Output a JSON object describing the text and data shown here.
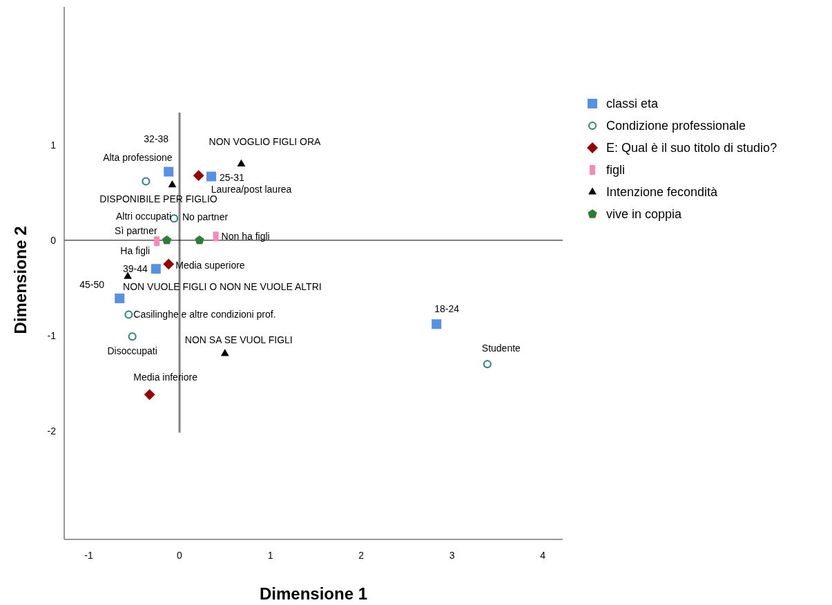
{
  "chart_data": {
    "type": "scatter",
    "xlabel": "Dimensione 1",
    "ylabel": "Dimensione 2",
    "xlim": [
      -1.27,
      4.22
    ],
    "ylim": [
      -3.14,
      2.45
    ],
    "xticks": [
      -1,
      0,
      1,
      2,
      3,
      4
    ],
    "yticks": [
      -2,
      -1,
      0,
      1
    ],
    "grid": false,
    "legend": "right",
    "ref_lines": [
      {
        "axis": "x",
        "value": 0,
        "color": "#808080"
      },
      {
        "axis": "y",
        "value": 0,
        "color": "#000000"
      }
    ],
    "series": [
      {
        "name": "classi eta",
        "color": "#5592e6",
        "marker": "square",
        "x": [
          -0.12,
          0.35,
          -0.26,
          -0.66,
          2.83
        ],
        "values": [
          0.72,
          0.67,
          -0.3,
          -0.61,
          -0.88
        ],
        "value_labels": [
          "32-38",
          "25-31",
          "39-44",
          "45-50",
          "18-24"
        ]
      },
      {
        "name": "Condizione professionale",
        "color": "#2a7f7f",
        "marker": "circle",
        "x": [
          -0.37,
          -0.06,
          -0.56,
          -0.52,
          3.39
        ],
        "values": [
          0.62,
          0.23,
          -0.78,
          -1.01,
          -1.3
        ],
        "value_labels": [
          "Alta professione",
          "Altri occupati",
          "Casilinghe e altre condizioni prof.",
          "Disoccupati",
          "Studente"
        ]
      },
      {
        "name": "E: Qual è il suo titolo di studio?",
        "color": "#990000",
        "marker": "diamond",
        "x": [
          0.21,
          -0.12,
          -0.33
        ],
        "values": [
          0.68,
          -0.25,
          -1.62
        ],
        "value_labels": [
          "Laurea/post laurea",
          "Media superiore",
          "Media inferiore"
        ]
      },
      {
        "name": "figli",
        "color": "#f788b8",
        "marker": "square",
        "x": [
          -0.25,
          0.4
        ],
        "values": [
          -0.01,
          0.04
        ],
        "value_labels": [
          "Ha figli",
          "Non ha figli"
        ]
      },
      {
        "name": "Intenzione fecondità",
        "color": "#000000",
        "marker": "triangle",
        "x": [
          0.68,
          -0.08,
          -0.57,
          0.5
        ],
        "values": [
          0.8,
          0.58,
          -0.38,
          -1.19
        ],
        "value_labels": [
          "NON VOGLIO FIGLI ORA",
          "DISPONIBILE PER FIGLIO",
          "NON VUOLE FIGLI O NON NE VUOLE ALTRI",
          "NON SA SE VUOL FIGLI"
        ]
      },
      {
        "name": "vive in coppia",
        "color": "#2e7d32",
        "x": [
          -0.14,
          0.22
        ],
        "values": [
          0.0,
          0.0
        ],
        "value_labels": [
          "Sì partner",
          "No partner"
        ]
      }
    ]
  }
}
